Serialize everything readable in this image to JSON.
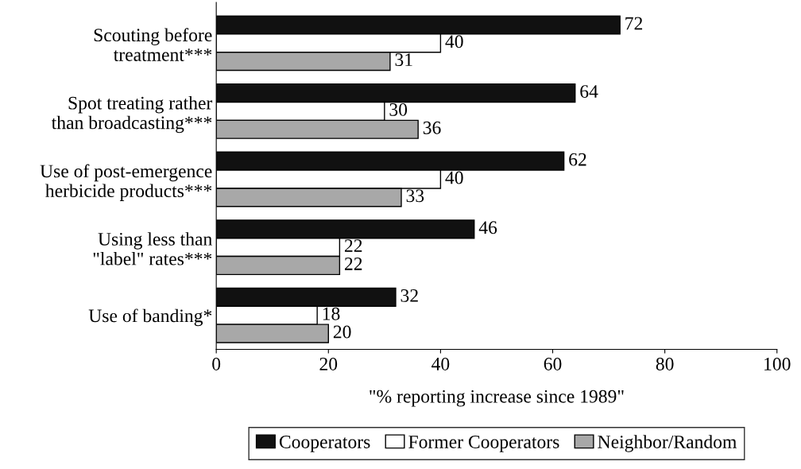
{
  "chart_data": {
    "type": "bar",
    "orientation": "horizontal",
    "xlabel": "\"% reporting increase since 1989\"",
    "categories": [
      "Scouting before\ntreatment***",
      "Spot treating rather\nthan broadcasting***",
      "Use of post-emergence\nherbicide products***",
      "Using less than\n\"label\" rates***",
      "Use of banding*"
    ],
    "series": [
      {
        "name": "Cooperators",
        "color": "#111111",
        "values": [
          72,
          64,
          62,
          46,
          32
        ]
      },
      {
        "name": "Former Cooperators",
        "color": "#ffffff",
        "values": [
          40,
          30,
          40,
          22,
          18
        ]
      },
      {
        "name": "Neighbor/Random",
        "color": "#a8a8a8",
        "values": [
          31,
          36,
          33,
          22,
          20
        ]
      }
    ],
    "xlim": [
      0,
      100
    ],
    "xticks": [
      0,
      20,
      40,
      60,
      80,
      100
    ],
    "data_labels": true,
    "legend": "bottom",
    "grid": false
  }
}
